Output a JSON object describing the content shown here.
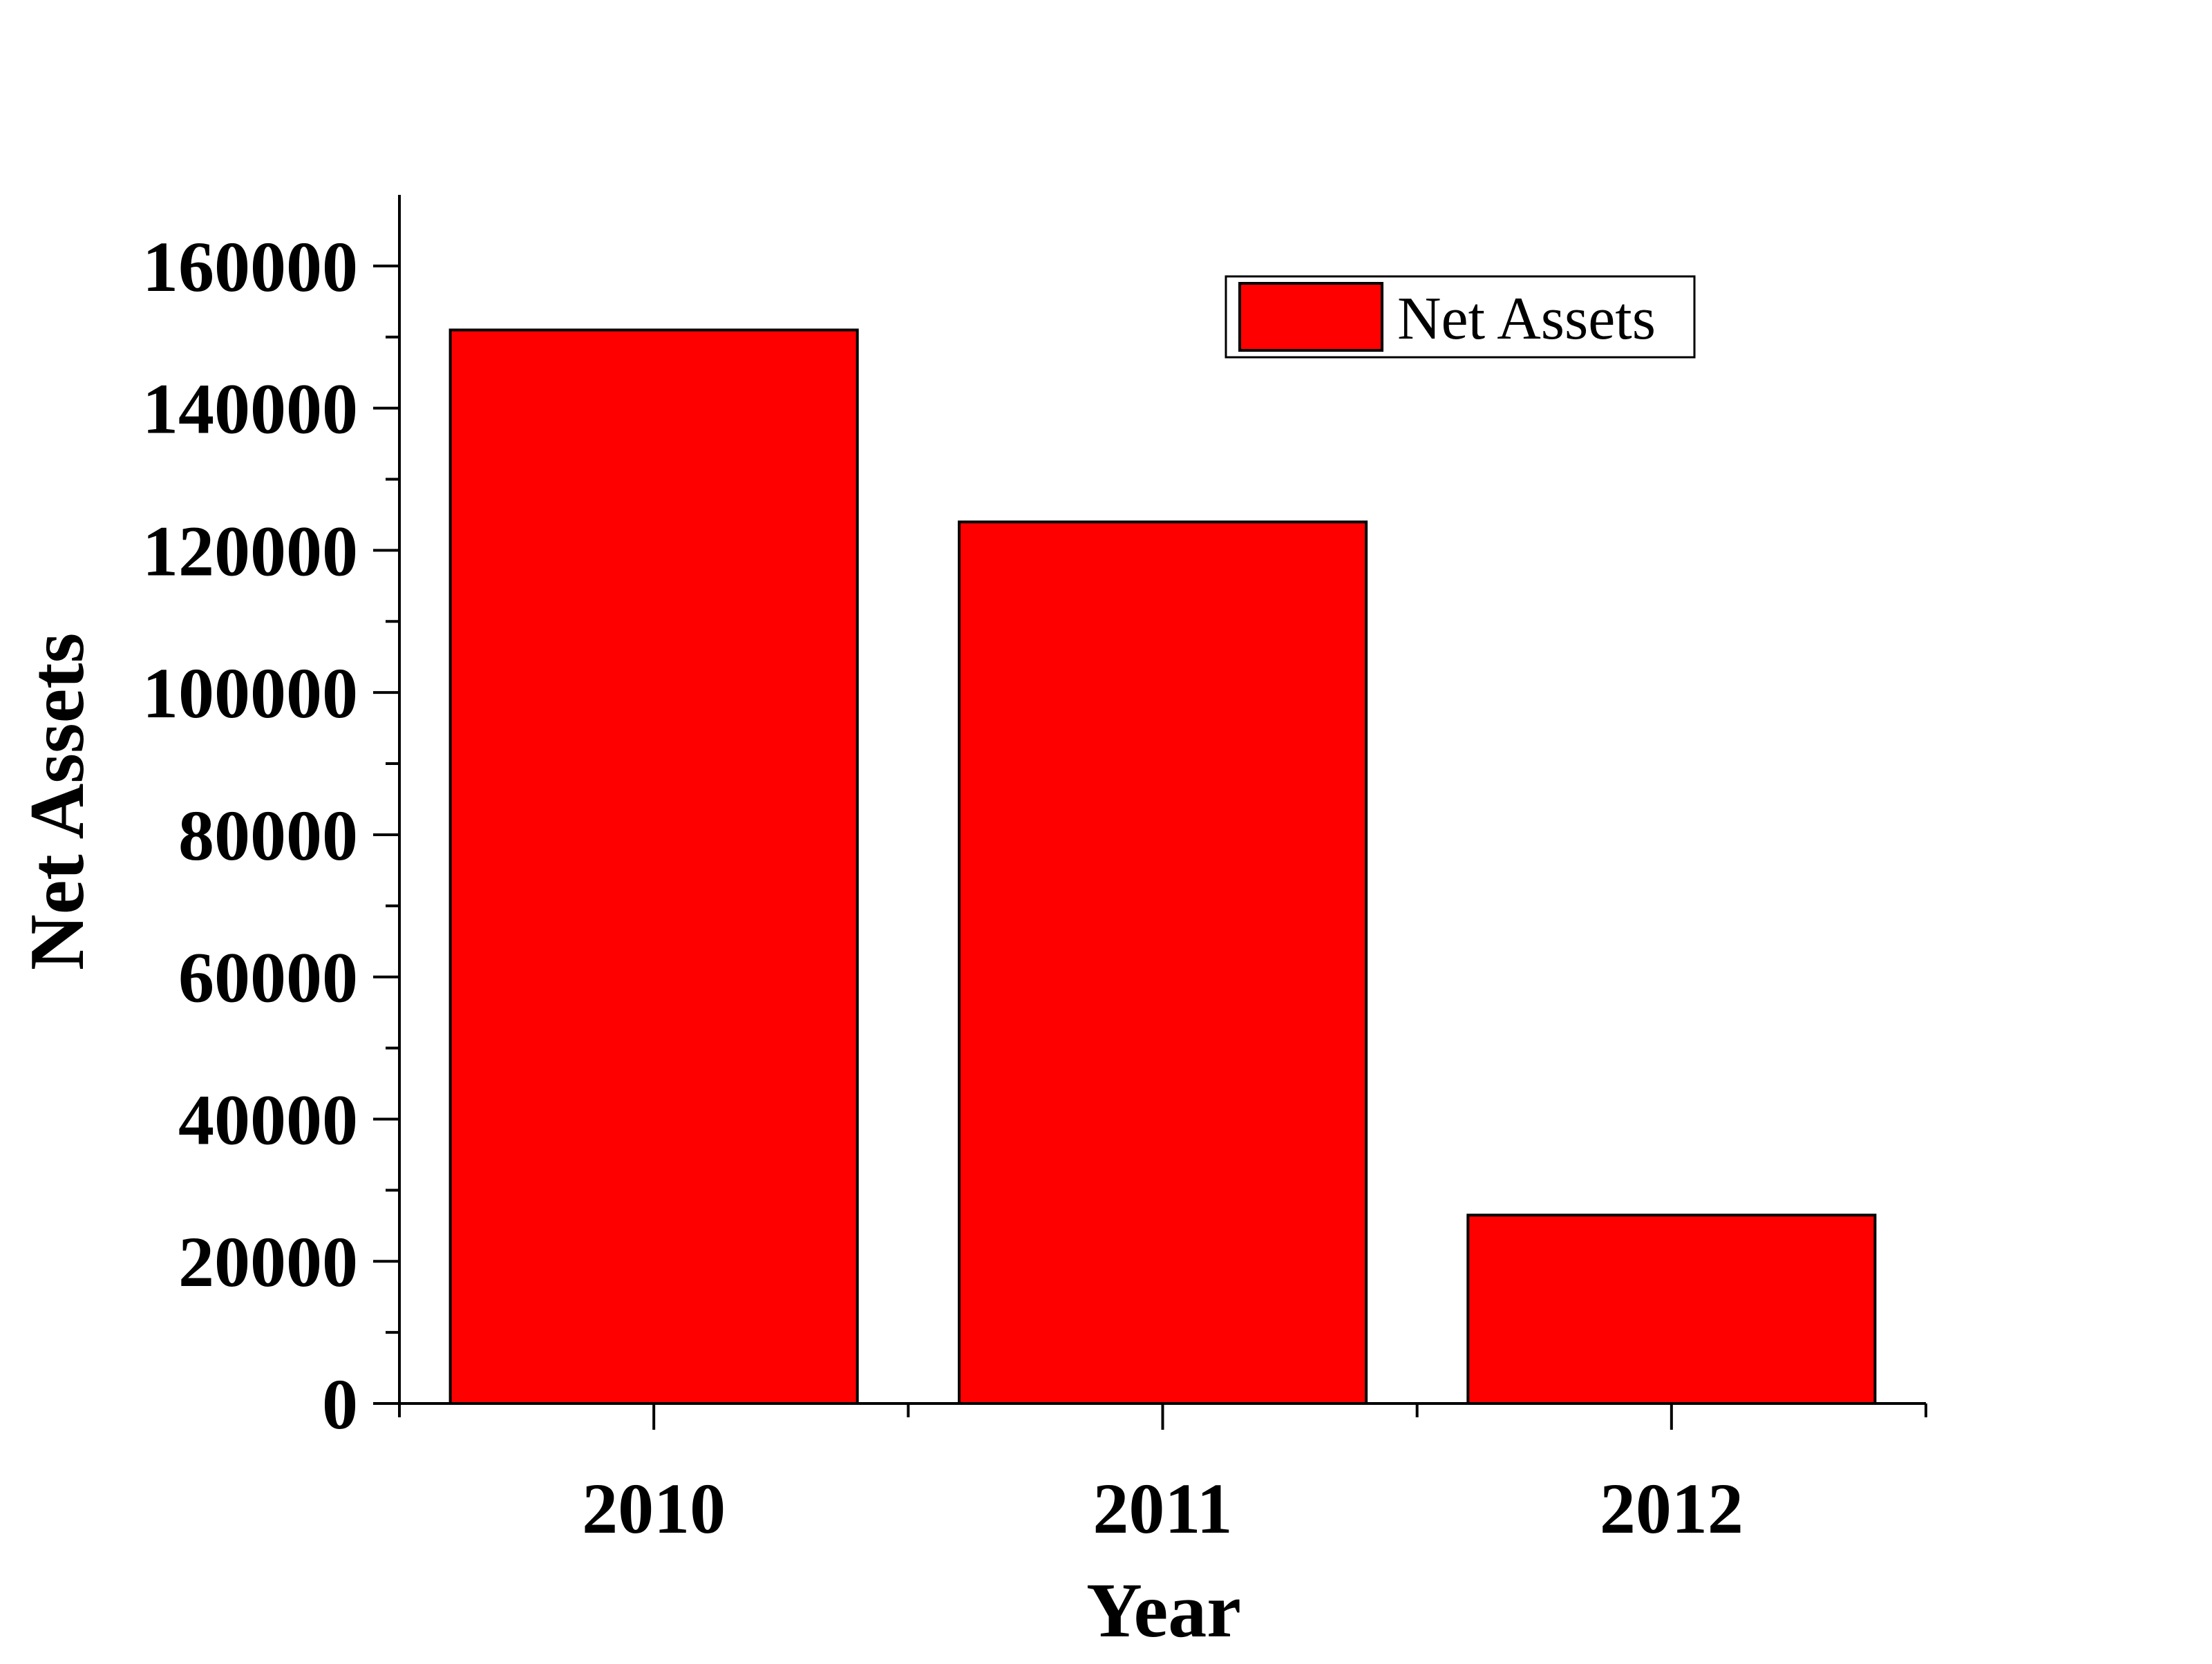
{
  "chart_data": {
    "type": "bar",
    "categories": [
      "2010",
      "2011",
      "2012"
    ],
    "series": [
      {
        "name": "Net Assets",
        "values": [
          151000,
          124000,
          26500
        ],
        "color": "#ff0000"
      }
    ],
    "xlabel": "Year",
    "ylabel": "Net Assets",
    "ylim": [
      0,
      170000
    ],
    "yticks": [
      0,
      20000,
      40000,
      60000,
      80000,
      100000,
      120000,
      140000,
      160000
    ],
    "grid": false,
    "legend_position": "top-right"
  }
}
